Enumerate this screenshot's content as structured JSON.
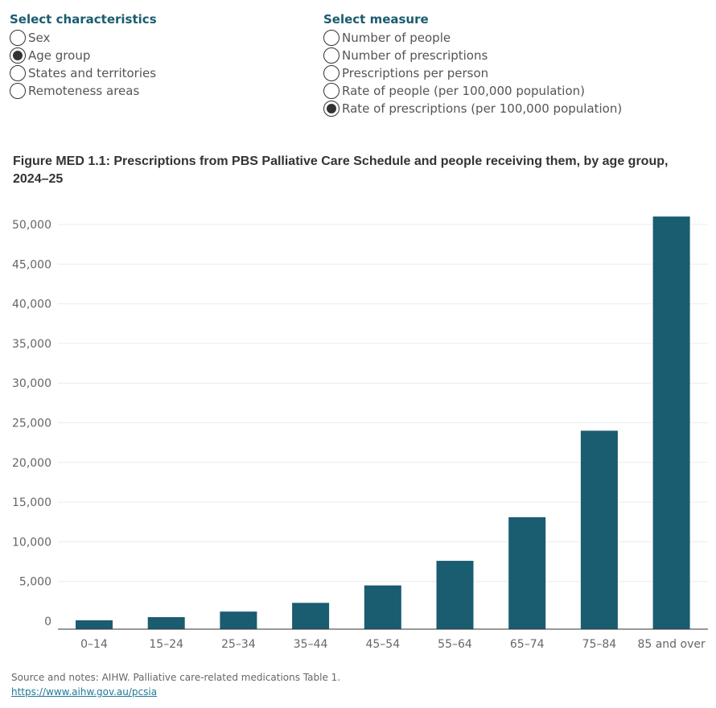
{
  "filters": {
    "characteristics": {
      "heading": "Select characteristics",
      "options": [
        "Sex",
        "Age group",
        "States and territories",
        "Remoteness areas"
      ],
      "selected": 1
    },
    "measure": {
      "heading": "Select measure",
      "options": [
        "Number of people",
        "Number of prescriptions",
        "Prescriptions per person",
        "Rate of people (per 100,000 population)",
        "Rate of prescriptions (per 100,000 population)"
      ],
      "selected": 4
    }
  },
  "chart_data": {
    "type": "bar",
    "title": "Figure MED 1.1: Prescriptions from PBS Palliative Care Schedule and people receiving them, by age group, 2024–25",
    "xlabel": "",
    "ylabel": "",
    "categories": [
      "0–14",
      "15–24",
      "25–34",
      "35–44",
      "45–54",
      "55–64",
      "65–74",
      "75–84",
      "85 and over"
    ],
    "values": [
      100,
      500,
      1200,
      2300,
      4500,
      7600,
      13100,
      24000,
      51000
    ],
    "ylim": [
      0,
      52000
    ],
    "yticks": [
      0,
      5000,
      10000,
      15000,
      20000,
      25000,
      30000,
      35000,
      40000,
      45000,
      50000
    ],
    "ytick_labels": [
      "0",
      "5,000",
      "10,000",
      "15,000",
      "20,000",
      "25,000",
      "30,000",
      "35,000",
      "40,000",
      "45,000",
      "50,000"
    ],
    "grid": true,
    "bar_color": "#1a5c70"
  },
  "source": {
    "note": "Source and notes: AIHW. Palliative care-related medications Table 1.",
    "link": "https://www.aihw.gov.au/pcsia"
  }
}
